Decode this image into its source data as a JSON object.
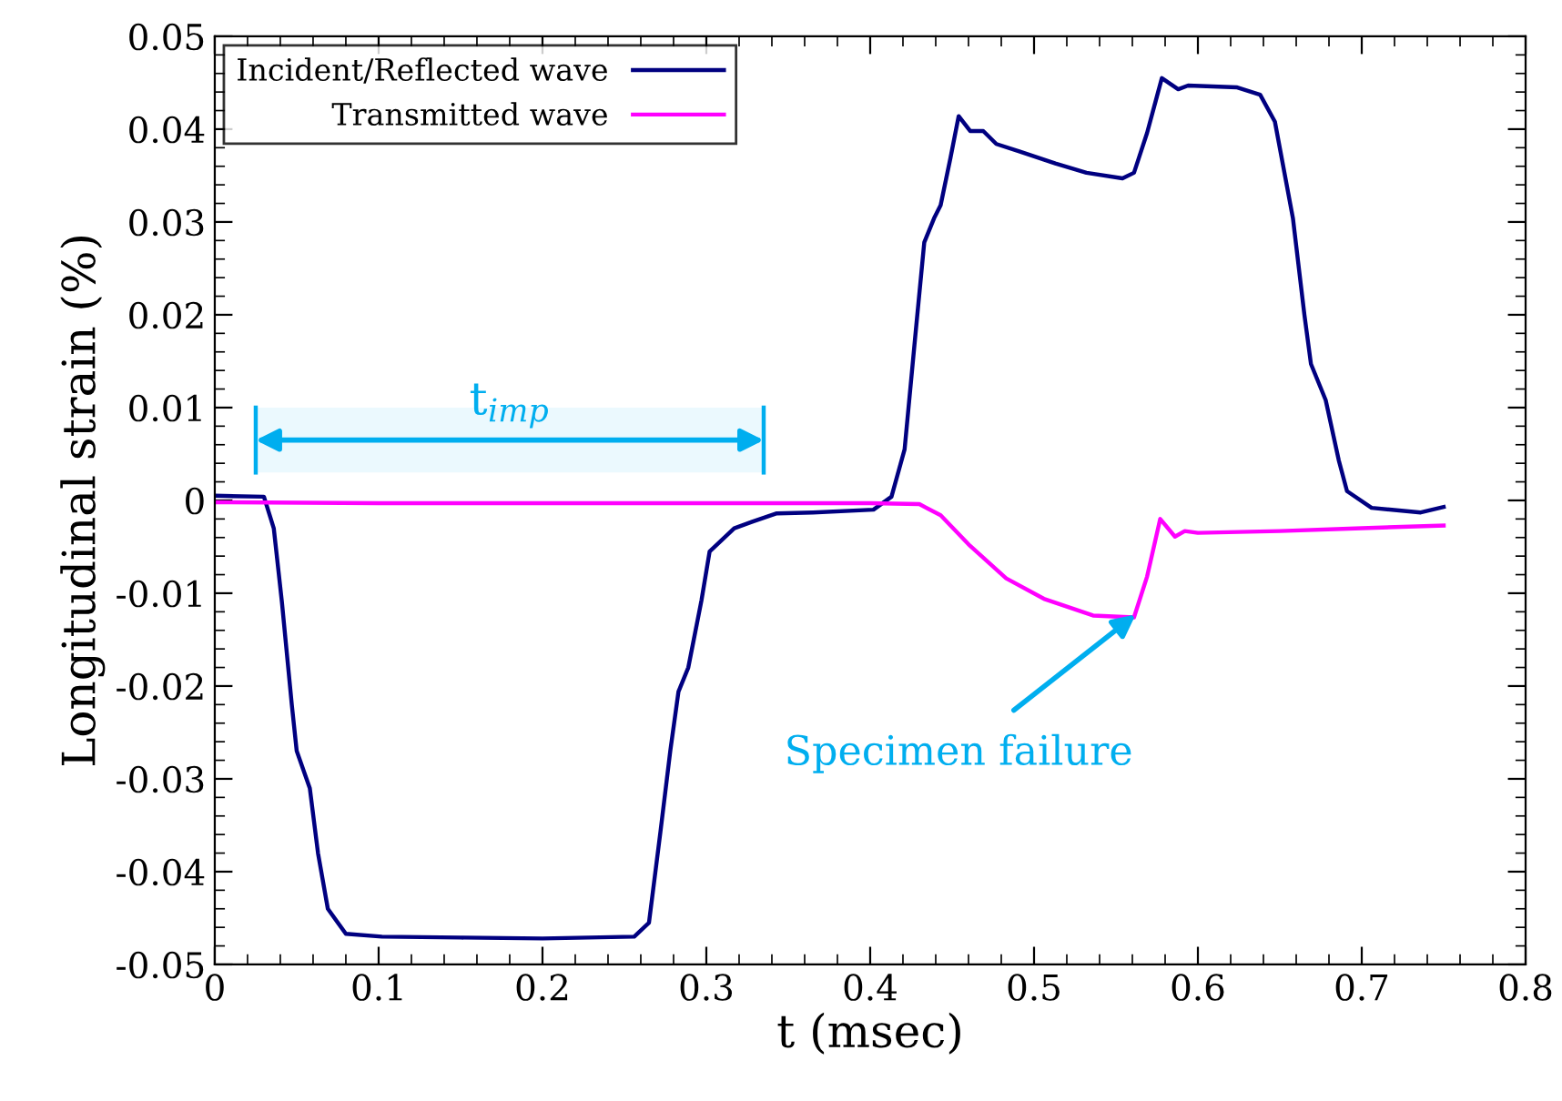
{
  "chart_data": {
    "type": "line",
    "xlabel": "t (msec)",
    "ylabel": "Longitudinal strain (%)",
    "xlim": [
      0,
      0.8
    ],
    "xticks": [
      0,
      0.1,
      0.2,
      0.3,
      0.4,
      0.5,
      0.6,
      0.7,
      0.8
    ],
    "ylim": [
      -0.05,
      0.05
    ],
    "yticks": [
      -0.05,
      -0.04,
      -0.03,
      -0.02,
      -0.01,
      0,
      0.01,
      0.02,
      0.03,
      0.04,
      0.05
    ],
    "grid": false,
    "legend": "top left",
    "marker": "none",
    "line_style": "solid",
    "series": [
      {
        "name": "Incident/Reflected wave",
        "color": "#000080",
        "x": [
          0,
          0.03,
          0.036,
          0.041,
          0.047,
          0.05,
          0.058,
          0.063,
          0.069,
          0.08,
          0.102,
          0.15,
          0.2,
          0.256,
          0.265,
          0.272,
          0.278,
          0.283,
          0.289,
          0.297,
          0.302,
          0.317,
          0.328,
          0.343,
          0.365,
          0.402,
          0.413,
          0.421,
          0.428,
          0.433,
          0.439,
          0.443,
          0.449,
          0.454,
          0.461,
          0.469,
          0.477,
          0.491,
          0.513,
          0.532,
          0.554,
          0.561,
          0.569,
          0.578,
          0.588,
          0.594,
          0.624,
          0.638,
          0.647,
          0.658,
          0.665,
          0.669,
          0.678,
          0.686,
          0.691,
          0.706,
          0.736,
          0.75
        ],
        "values": [
          0.0005,
          0.0004,
          -0.003,
          -0.011,
          -0.022,
          -0.027,
          -0.031,
          -0.038,
          -0.044,
          -0.0467,
          -0.047,
          -0.0471,
          -0.0472,
          -0.047,
          -0.0455,
          -0.0357,
          -0.027,
          -0.0206,
          -0.018,
          -0.0108,
          -0.0055,
          -0.003,
          -0.0023,
          -0.0014,
          -0.0013,
          -0.001,
          0.0004,
          0.0055,
          0.0186,
          0.0278,
          0.0304,
          0.0318,
          0.0369,
          0.0414,
          0.0398,
          0.0398,
          0.0384,
          0.0376,
          0.0363,
          0.0353,
          0.0347,
          0.0353,
          0.0396,
          0.0455,
          0.0443,
          0.0447,
          0.0445,
          0.0437,
          0.0408,
          0.0304,
          0.02,
          0.0147,
          0.0108,
          0.0043,
          0.001,
          -0.0008,
          -0.0013,
          -0.0007
        ]
      },
      {
        "name": "Transmitted wave",
        "color": "#ff00ff",
        "x": [
          0,
          0.1,
          0.2,
          0.3,
          0.4,
          0.43,
          0.443,
          0.461,
          0.483,
          0.506,
          0.536,
          0.561,
          0.569,
          0.577,
          0.586,
          0.592,
          0.6,
          0.65,
          0.7,
          0.75
        ],
        "values": [
          -0.0002,
          -0.0003,
          -0.0003,
          -0.0003,
          -0.0003,
          -0.0004,
          -0.0016,
          -0.0049,
          -0.0084,
          -0.0106,
          -0.0124,
          -0.0126,
          -0.0082,
          -0.002,
          -0.0039,
          -0.0033,
          -0.0035,
          -0.0033,
          -0.003,
          -0.0027
        ]
      }
    ],
    "bands": [
      {
        "axis": "x",
        "from": 0.025,
        "to": 0.335,
        "label": "t$_{imp}$",
        "color": "#00aeef"
      }
    ],
    "annotations": [
      {
        "text": "Specimen failure",
        "x": 0.562,
        "y": -0.0123
      }
    ]
  }
}
